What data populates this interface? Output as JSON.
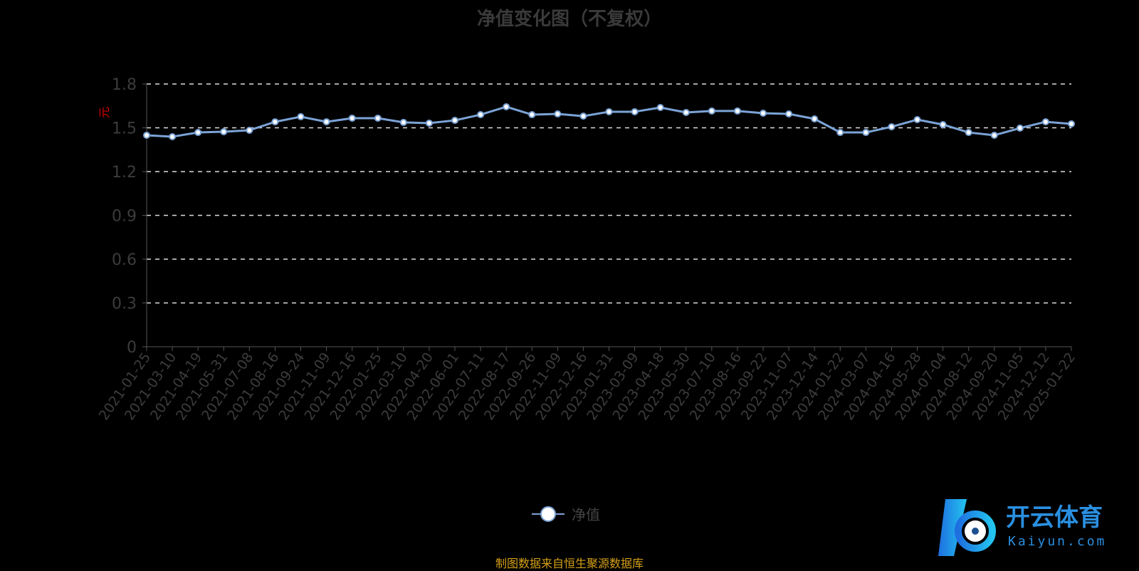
{
  "chart_data": {
    "type": "line",
    "title": "净值变化图（不复权）",
    "ylabel": "元",
    "ylim": [
      0,
      1.8
    ],
    "yticks": [
      0,
      0.3,
      0.6,
      0.9,
      1.2,
      1.5,
      1.8
    ],
    "grid": true,
    "legend_placement": "bottom",
    "line_color": "#7ba3d6",
    "x": [
      "2021-01-25",
      "2021-03-10",
      "2021-04-19",
      "2021-05-31",
      "2021-07-08",
      "2021-08-16",
      "2021-09-24",
      "2021-11-09",
      "2021-12-16",
      "2022-01-25",
      "2022-03-10",
      "2022-04-20",
      "2022-06-01",
      "2022-07-11",
      "2022-08-17",
      "2022-09-26",
      "2022-11-09",
      "2022-12-16",
      "2023-01-31",
      "2023-03-09",
      "2023-04-18",
      "2023-05-30",
      "2023-07-10",
      "2023-08-16",
      "2023-09-22",
      "2023-11-07",
      "2023-12-14",
      "2024-01-22",
      "2024-03-07",
      "2024-04-16",
      "2024-05-28",
      "2024-07-04",
      "2024-08-12",
      "2024-09-20",
      "2024-11-05",
      "2024-12-12",
      "2025-01-22"
    ],
    "series": [
      {
        "name": "净值",
        "values": [
          1.449,
          1.439,
          1.468,
          1.473,
          1.483,
          1.541,
          1.576,
          1.541,
          1.566,
          1.566,
          1.537,
          1.532,
          1.551,
          1.59,
          1.644,
          1.59,
          1.595,
          1.58,
          1.61,
          1.61,
          1.639,
          1.605,
          1.615,
          1.615,
          1.6,
          1.595,
          1.561,
          1.468,
          1.468,
          1.507,
          1.556,
          1.522,
          1.468,
          1.449,
          1.498,
          1.541,
          1.527
        ]
      }
    ]
  },
  "footer": "制图数据来自恒生聚源数据库",
  "watermark": {
    "text": "开云体育",
    "sub": "Kaiyun.com"
  }
}
